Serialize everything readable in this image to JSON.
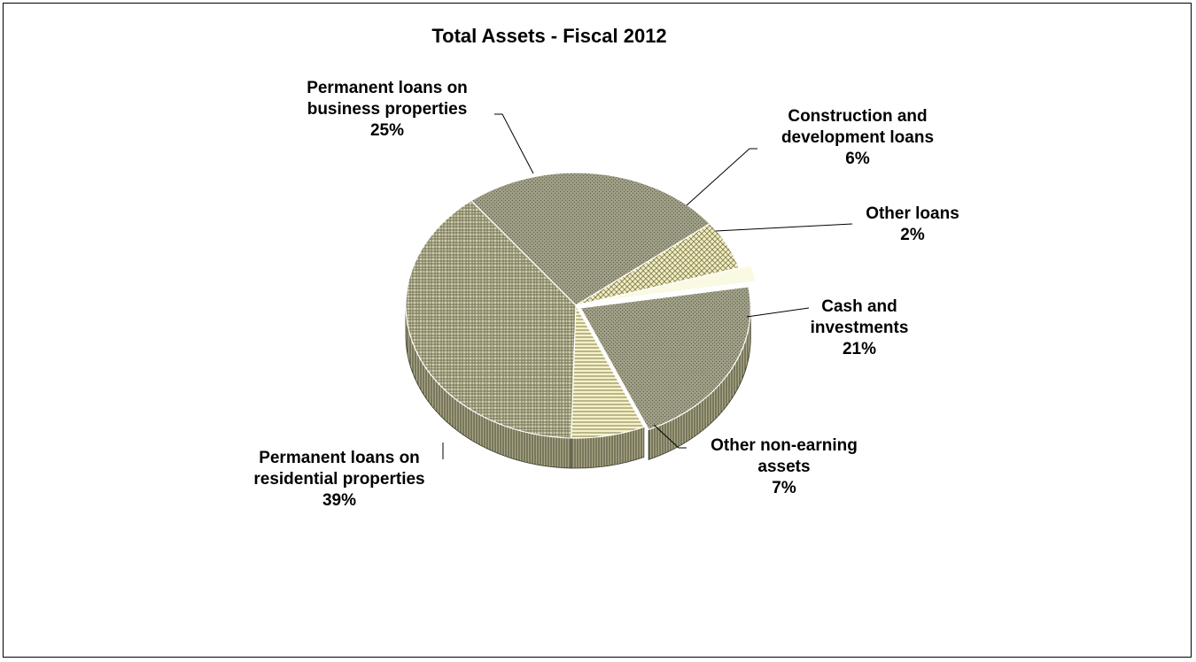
{
  "chart_data": {
    "type": "pie",
    "style": "3d-exploded",
    "title": "Total Assets - Fiscal 2012",
    "slices": [
      {
        "name": "Permanent loans on business properties",
        "label_lines": [
          "Permanent loans on",
          "business properties"
        ],
        "value": 25,
        "value_label": "25%",
        "color": "#9e9e86",
        "pattern": "dots"
      },
      {
        "name": "Construction and development loans",
        "label_lines": [
          "Construction and",
          "development loans"
        ],
        "value": 6,
        "value_label": "6%",
        "color": "#f2eebe",
        "pattern": "check"
      },
      {
        "name": "Other loans",
        "label_lines": [
          "Other loans"
        ],
        "value": 2,
        "value_label": "2%",
        "color": "#fafae4",
        "pattern": "none"
      },
      {
        "name": "Cash and investments",
        "label_lines": [
          "Cash and",
          "investments"
        ],
        "value": 21,
        "value_label": "21%",
        "color": "#dcd8a6",
        "pattern": "dots"
      },
      {
        "name": "Other non-earning assets",
        "label_lines": [
          "Other non-earning",
          "assets"
        ],
        "value": 7,
        "value_label": "7%",
        "color": "#f6f2c6",
        "pattern": "hlines"
      },
      {
        "name": "Permanent loans on residential properties",
        "label_lines": [
          "Permanent loans on",
          "residential properties"
        ],
        "value": 39,
        "value_label": "39%",
        "color": "#d2d0b0",
        "pattern": "grid"
      }
    ],
    "legend": "none"
  }
}
